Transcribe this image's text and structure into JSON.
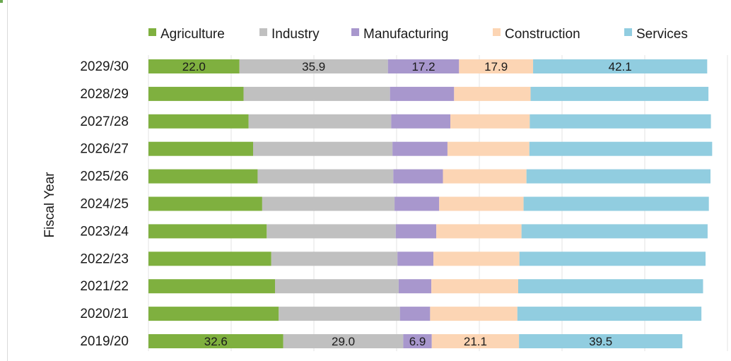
{
  "chart_data": {
    "type": "bar",
    "orientation": "horizontal",
    "stacked": true,
    "title": "",
    "xlabel": "",
    "ylabel": "Fiscal Year",
    "xlim": [
      0,
      140
    ],
    "grid": true,
    "legend": "top",
    "categories": [
      "2029/30",
      "2028/29",
      "2027/28",
      "2026/27",
      "2025/26",
      "2024/25",
      "2023/24",
      "2022/23",
      "2021/22",
      "2020/21",
      "2019/20"
    ],
    "series": [
      {
        "name": "Agriculture",
        "color": "#7fb03f",
        "values": [
          22.0,
          23.0,
          24.2,
          25.3,
          26.4,
          27.5,
          28.6,
          29.7,
          30.6,
          31.5,
          32.6
        ]
      },
      {
        "name": "Industry",
        "color": "#c0c0c0",
        "values": [
          35.9,
          35.4,
          34.5,
          33.7,
          32.8,
          32.0,
          31.2,
          30.5,
          29.9,
          29.3,
          29.0
        ]
      },
      {
        "name": "Manufacturing",
        "color": "#a897cd",
        "values": [
          17.2,
          15.5,
          14.3,
          13.3,
          12.0,
          10.8,
          9.8,
          8.7,
          7.9,
          7.3,
          6.9
        ]
      },
      {
        "name": "Construction",
        "color": "#fcd5b4",
        "values": [
          17.9,
          18.5,
          19.2,
          19.8,
          20.2,
          20.4,
          20.6,
          20.8,
          21.0,
          21.1,
          21.1
        ]
      },
      {
        "name": "Services",
        "color": "#91cde0",
        "values": [
          42.1,
          43.0,
          43.8,
          44.2,
          44.5,
          44.8,
          45.0,
          45.0,
          44.7,
          44.5,
          39.5
        ]
      }
    ],
    "data_labels": {
      "2029/30": [
        "22.0",
        "35.9",
        "17.2",
        "17.9",
        "42.1"
      ],
      "2019/20": [
        "32.6",
        "29.0",
        "6.9",
        "21.1",
        "39.5"
      ]
    }
  }
}
